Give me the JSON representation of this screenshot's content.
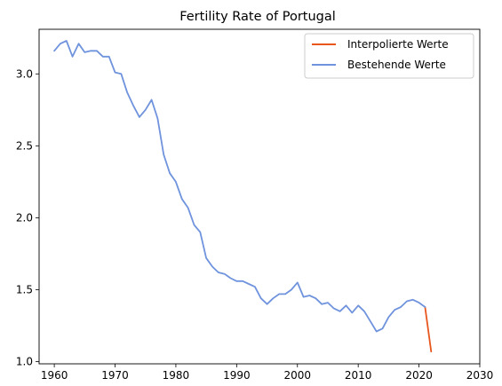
{
  "chart_data": {
    "type": "line",
    "title": "Fertility Rate of Portugal",
    "xlabel": "",
    "ylabel": "",
    "xlim": [
      1957.5,
      2030
    ],
    "ylim": [
      0.985,
      3.31
    ],
    "xticks": [
      1960,
      1970,
      1980,
      1990,
      2000,
      2010,
      2020,
      2030
    ],
    "xtick_labels": [
      "1960",
      "1970",
      "1980",
      "1990",
      "2000",
      "2010",
      "2020",
      "2030"
    ],
    "yticks": [
      1.0,
      1.5,
      2.0,
      2.5,
      3.0
    ],
    "ytick_labels": [
      "1.0",
      "1.5",
      "2.0",
      "2.5",
      "3.0"
    ],
    "grid": false,
    "legend_position": "top-right",
    "series": [
      {
        "name": "Interpolierte Werte",
        "color": "#e8561e",
        "x": [
          2021,
          2022
        ],
        "y": [
          1.38,
          1.07
        ]
      },
      {
        "name": "Bestehende Werte",
        "color": "#6f93dd",
        "x": [
          1960,
          1961,
          1962,
          1963,
          1964,
          1965,
          1966,
          1967,
          1968,
          1969,
          1970,
          1971,
          1972,
          1973,
          1974,
          1975,
          1976,
          1977,
          1978,
          1979,
          1980,
          1981,
          1982,
          1983,
          1984,
          1985,
          1986,
          1987,
          1988,
          1989,
          1990,
          1991,
          1992,
          1993,
          1994,
          1995,
          1996,
          1997,
          1998,
          1999,
          2000,
          2001,
          2002,
          2003,
          2004,
          2005,
          2006,
          2007,
          2008,
          2009,
          2010,
          2011,
          2012,
          2013,
          2014,
          2015,
          2016,
          2017,
          2018,
          2019,
          2020,
          2021
        ],
        "y": [
          3.16,
          3.21,
          3.23,
          3.12,
          3.21,
          3.15,
          3.16,
          3.16,
          3.12,
          3.12,
          3.01,
          3.0,
          2.87,
          2.78,
          2.7,
          2.75,
          2.82,
          2.69,
          2.44,
          2.31,
          2.25,
          2.13,
          2.07,
          1.95,
          1.9,
          1.72,
          1.66,
          1.62,
          1.61,
          1.58,
          1.56,
          1.56,
          1.54,
          1.52,
          1.44,
          1.4,
          1.44,
          1.47,
          1.47,
          1.5,
          1.55,
          1.45,
          1.46,
          1.44,
          1.4,
          1.41,
          1.37,
          1.35,
          1.39,
          1.34,
          1.39,
          1.35,
          1.28,
          1.21,
          1.23,
          1.31,
          1.36,
          1.38,
          1.42,
          1.43,
          1.41,
          1.38
        ]
      }
    ]
  }
}
